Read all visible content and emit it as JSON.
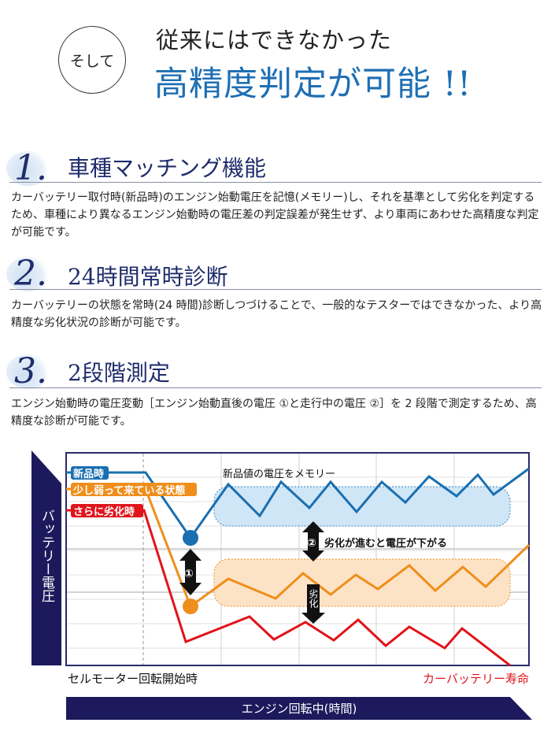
{
  "header": {
    "badge": "そして",
    "line1": "従来にはできなかった",
    "line2": "高精度判定が可能 !!"
  },
  "sections": [
    {
      "num": "1.",
      "title": "車種マッチング機能",
      "body": "カーバッテリー取付時(新品時)のエンジン始動電圧を記憶(メモリー)し、それを基準として劣化を判定するため、車種により異なるエンジン始動時の電圧差の判定誤差が発生せず、より車両にあわせた高精度な判定が可能です。"
    },
    {
      "num": "2.",
      "title": "24時間常時診断",
      "body": "カーバッテリーの状態を常時(24 時間)診断しつづけることで、一般的なテスターではできなかった、より高精度な劣化状況の診断が可能です。"
    },
    {
      "num": "3.",
      "title": "2段階測定",
      "body": "エンジン始動時の電圧変動［エンジン始動直後の電圧 ①と走行中の電圧 ②］を 2 段階で測定するため、高精度な診断が可能です。"
    }
  ],
  "diagram": {
    "y_label": "バッテリー電圧",
    "x_bar_label": "エンジン回転中(時間)",
    "x_start_label": "セルモーター回転開始時",
    "x_end_label": "カーバッテリー寿命",
    "series": [
      {
        "name": "新品時",
        "color": "#1a6fb0"
      },
      {
        "name": "少し弱って来ている状態",
        "color": "#ef8e1c"
      },
      {
        "name": "さらに劣化時",
        "color": "#e0141b"
      }
    ],
    "memory_label": "新品値の電圧をメモリー",
    "marker1": "①",
    "marker2": "②",
    "marker2_text": "劣化が進むと電圧が下がる",
    "degrade_label": "劣化",
    "navy": "#1c1a5c"
  }
}
